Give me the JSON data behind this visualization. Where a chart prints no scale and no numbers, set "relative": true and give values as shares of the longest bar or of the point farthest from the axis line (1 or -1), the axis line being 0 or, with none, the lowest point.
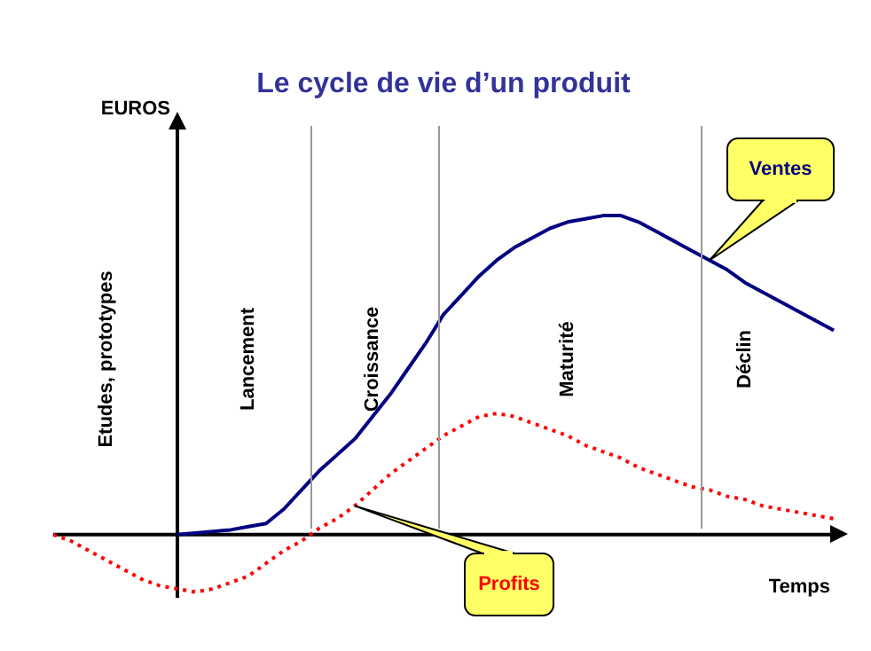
{
  "chart_data": {
    "type": "line",
    "title": "Le cycle de vie d’un produit",
    "xlabel": "Temps",
    "ylabel": "EUROS",
    "relative": true,
    "marker": "none",
    "categories": [
      null,
      null,
      null,
      "Etudes, prototypes",
      null,
      null,
      null,
      null,
      null,
      null,
      null,
      "Lancement",
      null,
      null,
      null,
      null,
      null,
      null,
      "Croissance",
      null,
      null,
      null,
      null,
      null,
      null,
      null,
      null,
      null,
      null,
      "Maturité",
      null,
      null,
      null,
      null,
      null,
      null,
      null,
      null,
      null,
      "Déclin",
      null,
      null,
      null,
      null,
      null
    ],
    "series": [
      {
        "name": "Ventes",
        "color": "#000080",
        "line_style": "solid",
        "values": [
          null,
          null,
          null,
          null,
          null,
          null,
          null,
          0,
          0.005,
          0.01,
          0.015,
          0.025,
          0.035,
          0.08,
          0.14,
          0.2,
          0.25,
          0.3,
          0.37,
          0.44,
          0.52,
          0.6,
          0.69,
          0.75,
          0.81,
          0.86,
          0.9,
          0.93,
          0.96,
          0.98,
          0.99,
          1,
          1,
          0.98,
          0.95,
          0.92,
          0.89,
          0.86,
          0.83,
          0.79,
          0.76,
          0.73,
          0.7,
          0.67,
          0.64
        ]
      },
      {
        "name": "Profits",
        "color": "#ff0000",
        "line_style": "dotted",
        "values": [
          0,
          -0.02,
          -0.05,
          -0.08,
          -0.11,
          -0.14,
          -0.16,
          -0.17,
          -0.18,
          -0.17,
          -0.15,
          -0.13,
          -0.09,
          -0.05,
          -0.02,
          0.02,
          0.05,
          0.09,
          0.14,
          0.19,
          0.23,
          0.27,
          0.31,
          0.34,
          0.37,
          0.38,
          0.37,
          0.35,
          0.33,
          0.31,
          0.28,
          0.26,
          0.24,
          0.21,
          0.19,
          0.17,
          0.15,
          0.14,
          0.12,
          0.11,
          0.09,
          0.08,
          0.07,
          0.06,
          0.05
        ]
      }
    ]
  }
}
